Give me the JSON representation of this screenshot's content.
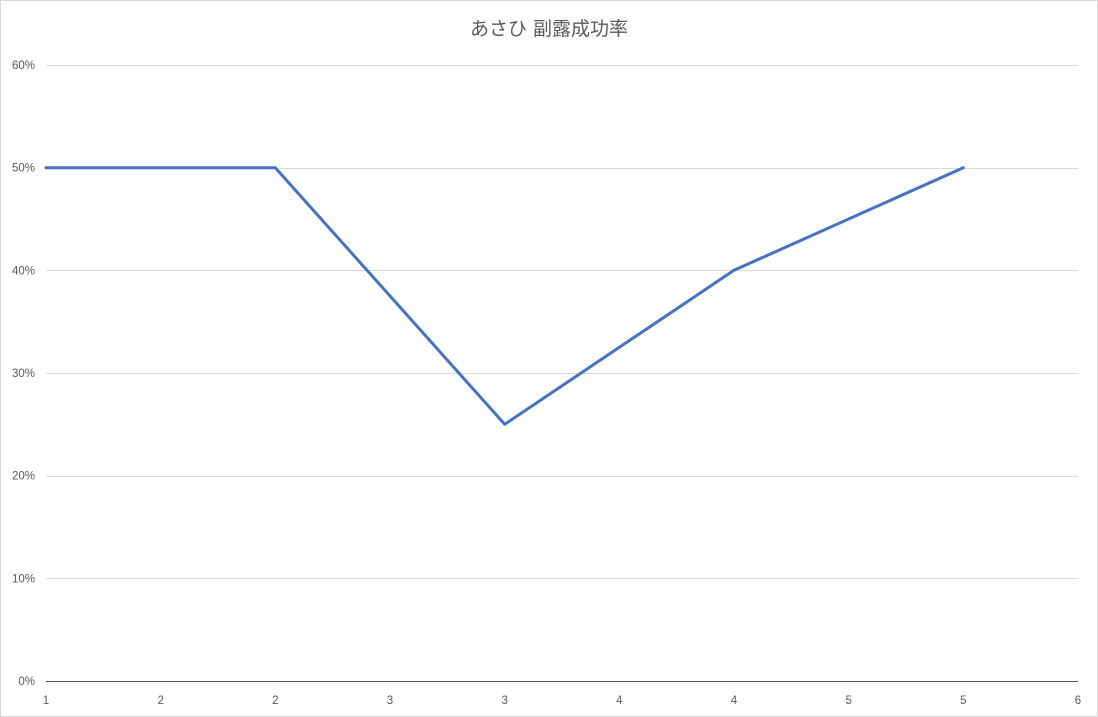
{
  "chart_data": {
    "type": "line",
    "title": "あさひ 副露成功率",
    "xlabel": "",
    "ylabel": "",
    "categories": [
      "1",
      "2",
      "2",
      "3",
      "3",
      "4",
      "4",
      "5",
      "5",
      "6"
    ],
    "series": [
      {
        "values": [
          0.5,
          null,
          0.5,
          null,
          0.25,
          null,
          0.4,
          null,
          0.5,
          null
        ]
      }
    ],
    "ylim": [
      0,
      0.6
    ],
    "y_ticks": [
      0,
      0.1,
      0.2,
      0.3,
      0.4,
      0.5,
      0.6
    ],
    "y_tick_labels": [
      "0%",
      "10%",
      "20%",
      "30%",
      "40%",
      "50%",
      "60%"
    ],
    "y_format": "percent",
    "grid": true,
    "legend": "none",
    "colors": {
      "series": "#4472c4",
      "grid": "#d9d9d9",
      "axis": "#595959",
      "text": "#595959"
    }
  }
}
